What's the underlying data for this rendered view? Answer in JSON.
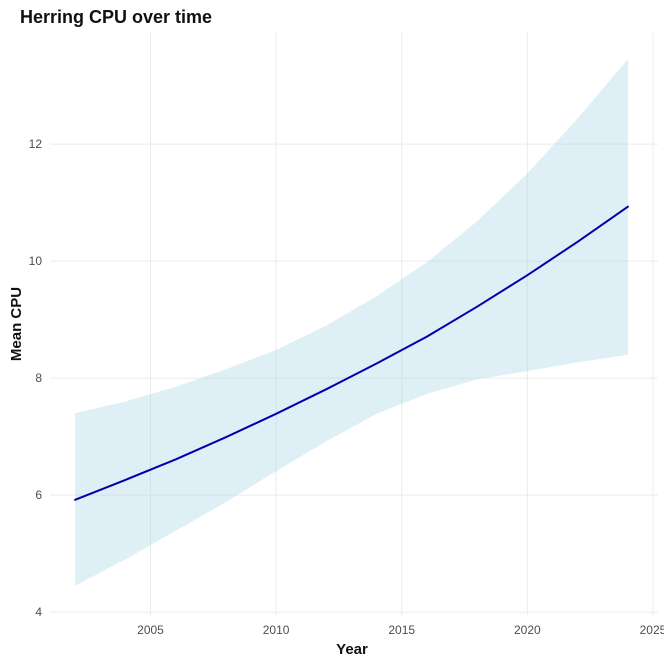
{
  "chart_data": {
    "type": "line",
    "title": "Herring CPU over time",
    "xlabel": "Year",
    "ylabel": "Mean CPU",
    "xlim": [
      2001.0,
      2025.2
    ],
    "ylim": [
      3.95,
      13.9
    ],
    "x_ticks": [
      2005,
      2010,
      2015,
      2020,
      2025
    ],
    "y_ticks": [
      4,
      6,
      8,
      10,
      12
    ],
    "grid": true,
    "series": [
      {
        "x": [
          2002,
          2004,
          2006,
          2008,
          2010,
          2012,
          2014,
          2016,
          2018,
          2020,
          2022,
          2024
        ],
        "y": [
          5.92,
          6.26,
          6.61,
          6.99,
          7.39,
          7.81,
          8.25,
          8.71,
          9.22,
          9.76,
          10.33,
          10.93
        ],
        "lower": [
          4.45,
          4.9,
          5.39,
          5.88,
          6.41,
          6.92,
          7.39,
          7.73,
          7.98,
          8.12,
          8.27,
          8.4
        ],
        "upper": [
          7.4,
          7.6,
          7.85,
          8.15,
          8.48,
          8.9,
          9.4,
          9.98,
          10.68,
          11.5,
          12.44,
          13.45
        ]
      }
    ],
    "colors": {
      "line": "#0000a8",
      "ribbon": "#add8e6"
    }
  }
}
